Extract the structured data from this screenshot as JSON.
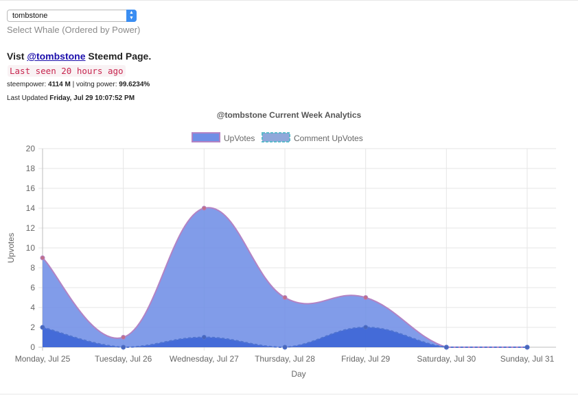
{
  "selector": {
    "value": "tombstone",
    "hint": "Select Whale (Ordered by Power)"
  },
  "profile": {
    "visit_prefix": "Vist ",
    "handle": "@tombstone",
    "visit_suffix": " Steemd Page.",
    "last_seen": "Last seen 20 hours ago",
    "steempower_label": "steempower: ",
    "steempower_value": "4114 M",
    "separator": " | ",
    "voting_label": "voitng power: ",
    "voting_value": "99.6234%",
    "updated_label": "Last Updated ",
    "updated_value": "Friday, Jul 29 10:07:52 PM"
  },
  "colors": {
    "upvotes_fill": "#6f8ee6",
    "upvotes_line": "#b383c4",
    "comment_fill": "#3d66d6",
    "comment_line": "#4f73cf",
    "legend_comment_border": "#5ab9c9"
  },
  "chart_data": {
    "type": "area",
    "title": "@tombstone Current Week Analytics",
    "xlabel": "Day",
    "ylabel": "Upvotes",
    "categories": [
      "Monday, Jul 25",
      "Tuesday, Jul 26",
      "Wednesday, Jul 27",
      "Thursday, Jul 28",
      "Friday, Jul 29",
      "Saturday, Jul 30",
      "Sunday, Jul 31"
    ],
    "ylim": [
      0,
      20
    ],
    "yticks": [
      0,
      2,
      4,
      6,
      8,
      10,
      12,
      14,
      16,
      18,
      20
    ],
    "grid": true,
    "legend": "top-center",
    "series": [
      {
        "name": "UpVotes",
        "values": [
          9,
          1,
          14,
          5,
          5,
          0,
          0
        ]
      },
      {
        "name": "Comment UpVotes",
        "values": [
          2,
          0,
          1,
          0,
          2,
          0,
          0
        ]
      }
    ]
  }
}
